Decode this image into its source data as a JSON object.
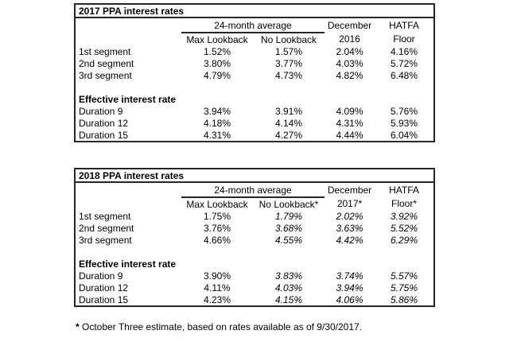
{
  "tables": [
    {
      "title": "2017 PPA interest rates",
      "group_header": "24-month average",
      "col_december": "December",
      "col_hatfa": "HATFA",
      "subheaders": [
        "Max Lookback",
        "No Lookback",
        "2016",
        "Floor"
      ],
      "segment_rows": [
        {
          "label": "1st segment",
          "values": [
            "1.52%",
            "1.57%",
            "2.04%",
            "4.16%"
          ]
        },
        {
          "label": "2nd segment",
          "values": [
            "3.80%",
            "3.77%",
            "4.03%",
            "5.72%"
          ]
        },
        {
          "label": "3rd segment",
          "values": [
            "4.79%",
            "4.73%",
            "4.82%",
            "6.48%"
          ]
        }
      ],
      "section_header": "Effective interest rate",
      "duration_rows": [
        {
          "label": "Duration 9",
          "values": [
            "3.94%",
            "3.91%",
            "4.09%",
            "5.76%"
          ]
        },
        {
          "label": "Duration 12",
          "values": [
            "4.18%",
            "4.14%",
            "4.31%",
            "5.93%"
          ]
        },
        {
          "label": "Duration 15",
          "values": [
            "4.31%",
            "4.27%",
            "4.44%",
            "6.04%"
          ]
        }
      ]
    },
    {
      "title": "2018 PPA interest rates",
      "group_header": "24-month average",
      "col_december": "December",
      "col_hatfa": "HATFA",
      "subheaders": [
        "Max Lookback",
        "No Lookback*",
        "2017*",
        "Floor*"
      ],
      "segment_rows": [
        {
          "label": "1st segment",
          "values": [
            "1.75%",
            "1.79%",
            "2.02%",
            "3.92%"
          ]
        },
        {
          "label": "2nd segment",
          "values": [
            "3.76%",
            "3.68%",
            "3.63%",
            "5.52%"
          ]
        },
        {
          "label": "3rd segment",
          "values": [
            "4.66%",
            "4.55%",
            "4.42%",
            "6.29%"
          ]
        }
      ],
      "section_header": "Effective interest rate",
      "duration_rows": [
        {
          "label": "Duration 9",
          "values": [
            "3.90%",
            "3.83%",
            "3.74%",
            "5.57%"
          ]
        },
        {
          "label": "Duration 12",
          "values": [
            "4.11%",
            "4.03%",
            "3.94%",
            "5.75%"
          ]
        },
        {
          "label": "Duration 15",
          "values": [
            "4.23%",
            "4.15%",
            "4.06%",
            "5.86%"
          ]
        }
      ]
    }
  ],
  "footnote": {
    "marker": "*",
    "text": "October Three estimate, based on rates available as of 9/30/2017."
  },
  "colors": {
    "border": "#262626",
    "text": "#000000",
    "background": "#ffffff"
  }
}
